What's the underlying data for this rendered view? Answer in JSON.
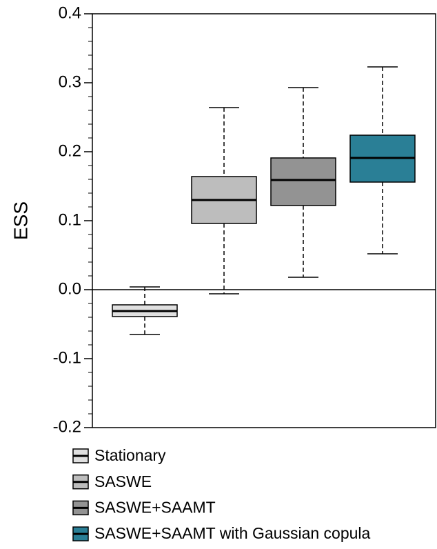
{
  "chart_data": {
    "type": "box",
    "y_label": "ESS",
    "ylim": [
      -0.2,
      0.4
    ],
    "yticks": [
      -0.2,
      -0.1,
      {
        "value": 0,
        "label": "0.0"
      },
      0.1,
      0.2,
      0.3,
      0.4
    ],
    "yminor_ticks": [
      -0.18,
      -0.16,
      -0.14,
      -0.12,
      -0.08,
      -0.06,
      -0.04,
      -0.02,
      0.02,
      0.04,
      0.06,
      0.08,
      0.12,
      0.14,
      0.16,
      0.18,
      0.22,
      0.24,
      0.26,
      0.28,
      0.32,
      0.34,
      0.36,
      0.38
    ],
    "hline": 0,
    "series": [
      {
        "name": "Stationary",
        "color": "#e0e0e0",
        "whisker_low": -0.065,
        "q1": -0.039,
        "median": -0.031,
        "q3": -0.022,
        "whisker_high": 0.004
      },
      {
        "name": "SASWE",
        "color": "#bdbdbd",
        "whisker_low": -0.006,
        "q1": 0.096,
        "median": 0.13,
        "q3": 0.164,
        "whisker_high": 0.264
      },
      {
        "name": "SASWE+SAAMT",
        "color": "#939393",
        "whisker_low": 0.018,
        "q1": 0.122,
        "median": 0.159,
        "q3": 0.191,
        "whisker_high": 0.293
      },
      {
        "name": "SASWE+SAAMT with Gaussian copula",
        "color": "#2a7f96",
        "whisker_low": 0.052,
        "q1": 0.156,
        "median": 0.191,
        "q3": 0.224,
        "whisker_high": 0.323
      }
    ]
  }
}
